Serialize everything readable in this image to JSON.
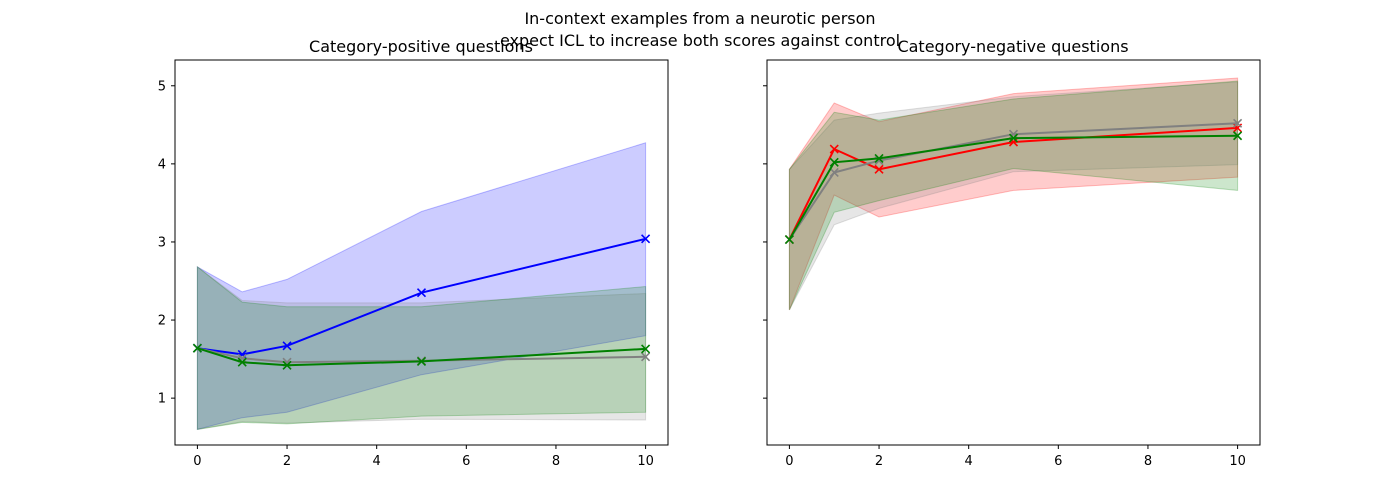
{
  "figure": {
    "suptitle_lines": [
      "In-context examples from a neurotic person",
      "expect ICL to increase both scores against control"
    ]
  },
  "chart_data": [
    {
      "type": "line",
      "title": "Category-positive questions",
      "xlabel": "",
      "ylabel": "",
      "x": [
        0,
        1,
        2,
        5,
        10
      ],
      "xlim": [
        -0.5,
        10.5
      ],
      "ylim": [
        0.4,
        5.33
      ],
      "xticks": [
        0,
        2,
        4,
        6,
        8,
        10
      ],
      "yticks": [
        1,
        2,
        3,
        4,
        5
      ],
      "grid": false,
      "series": [
        {
          "color": "#0000ff",
          "band_color": "#0000ff",
          "marker": "x",
          "values": [
            1.64,
            1.56,
            1.67,
            2.35,
            3.04
          ],
          "lower": [
            0.6,
            0.75,
            0.82,
            1.3,
            1.8
          ],
          "upper": [
            2.68,
            2.36,
            2.52,
            3.39,
            4.27
          ]
        },
        {
          "color": "#808080",
          "band_color": "#808080",
          "marker": "x",
          "values": [
            1.64,
            1.51,
            1.46,
            1.48,
            1.53
          ],
          "lower": [
            0.6,
            0.7,
            0.68,
            0.73,
            0.72
          ],
          "upper": [
            2.68,
            2.25,
            2.22,
            2.22,
            2.34
          ]
        },
        {
          "color": "#008000",
          "band_color": "#008000",
          "marker": "x",
          "values": [
            1.64,
            1.46,
            1.42,
            1.47,
            1.63
          ],
          "lower": [
            0.6,
            0.69,
            0.67,
            0.77,
            0.82
          ],
          "upper": [
            2.68,
            2.23,
            2.17,
            2.17,
            2.43
          ]
        }
      ]
    },
    {
      "type": "line",
      "title": "Category-negative questions",
      "xlabel": "",
      "ylabel": "",
      "x": [
        0,
        1,
        2,
        5,
        10
      ],
      "xlim": [
        -0.5,
        10.5
      ],
      "ylim": [
        0.4,
        5.33
      ],
      "xticks": [
        0,
        2,
        4,
        6,
        8,
        10
      ],
      "yticks": [
        1,
        2,
        3,
        4,
        5
      ],
      "ytick_labels_shown": false,
      "grid": false,
      "series": [
        {
          "color": "#ff0000",
          "band_color": "#ff0000",
          "marker": "x",
          "values": [
            3.03,
            4.19,
            3.93,
            4.28,
            4.46
          ],
          "lower": [
            2.13,
            3.6,
            3.32,
            3.66,
            3.83
          ],
          "upper": [
            3.93,
            4.78,
            4.54,
            4.9,
            5.1
          ]
        },
        {
          "color": "#808080",
          "band_color": "#808080",
          "marker": "x",
          "values": [
            3.03,
            3.89,
            4.04,
            4.38,
            4.52
          ],
          "lower": [
            2.13,
            3.22,
            3.43,
            3.9,
            3.99
          ],
          "upper": [
            3.93,
            4.56,
            4.65,
            4.86,
            5.05
          ]
        },
        {
          "color": "#008000",
          "band_color": "#008000",
          "marker": "x",
          "values": [
            3.03,
            4.02,
            4.07,
            4.33,
            4.36
          ],
          "lower": [
            2.13,
            3.38,
            3.53,
            3.94,
            3.66
          ],
          "upper": [
            3.93,
            4.66,
            4.56,
            4.83,
            5.06
          ]
        }
      ]
    }
  ]
}
